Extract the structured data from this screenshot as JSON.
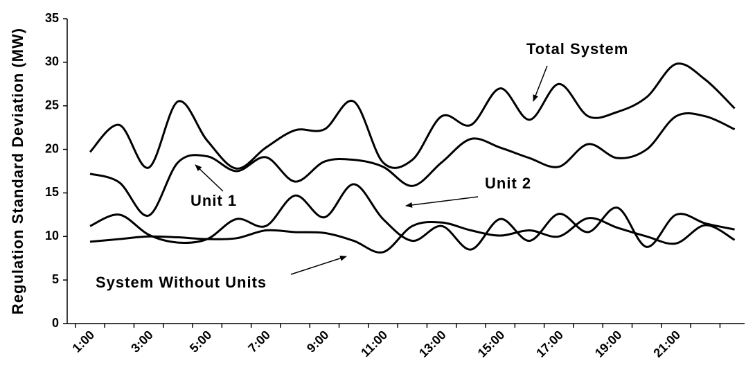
{
  "chart_data": {
    "type": "line",
    "ylabel": "Regulation Standard Deviation (MW)",
    "categories": [
      "1:00",
      null,
      "3:00",
      null,
      "5:00",
      null,
      "7:00",
      null,
      "9:00",
      null,
      "11:00",
      null,
      "13:00",
      null,
      "15:00",
      null,
      "17:00",
      null,
      "19:00",
      null,
      "21:00",
      null,
      null
    ],
    "ylim": [
      0,
      35
    ],
    "yticks": [
      0,
      5,
      10,
      15,
      20,
      25,
      30,
      35
    ],
    "series": [
      {
        "name": "Total System",
        "color": "#000000",
        "values": [
          19.7,
          22.8,
          17.9,
          25.5,
          21,
          17.8,
          20.2,
          22.2,
          22.3,
          25.5,
          18.5,
          18.8,
          23.8,
          22.8,
          27,
          23.4,
          27.5,
          23.8,
          24.3,
          26,
          29.8,
          28,
          24.7
        ]
      },
      {
        "name": "Unit 1",
        "color": "#000000",
        "values": [
          17.2,
          16.2,
          12.4,
          18.5,
          19.2,
          17.5,
          19.1,
          16.3,
          18.6,
          18.8,
          18,
          15.8,
          18.5,
          21.2,
          20.2,
          19,
          18,
          20.6,
          19,
          20,
          23.8,
          23.8,
          22.3
        ]
      },
      {
        "name": "Unit 2",
        "color": "#000000",
        "values": [
          11.2,
          12.5,
          10.2,
          9.3,
          9.7,
          12,
          11.2,
          14.7,
          12.2,
          16,
          12,
          9.5,
          11.2,
          8.5,
          12,
          9.5,
          12.6,
          10.5,
          13.3,
          8.8,
          12.5,
          11.5,
          10.8
        ]
      },
      {
        "name": "System Without Units",
        "color": "#000000",
        "values": [
          9.4,
          9.7,
          10,
          9.9,
          9.7,
          9.8,
          10.7,
          10.5,
          10.4,
          9.5,
          8.2,
          11.2,
          11.6,
          10.7,
          10.1,
          10.7,
          10,
          12.1,
          11,
          10,
          9.2,
          11.3,
          9.6
        ]
      }
    ]
  }
}
